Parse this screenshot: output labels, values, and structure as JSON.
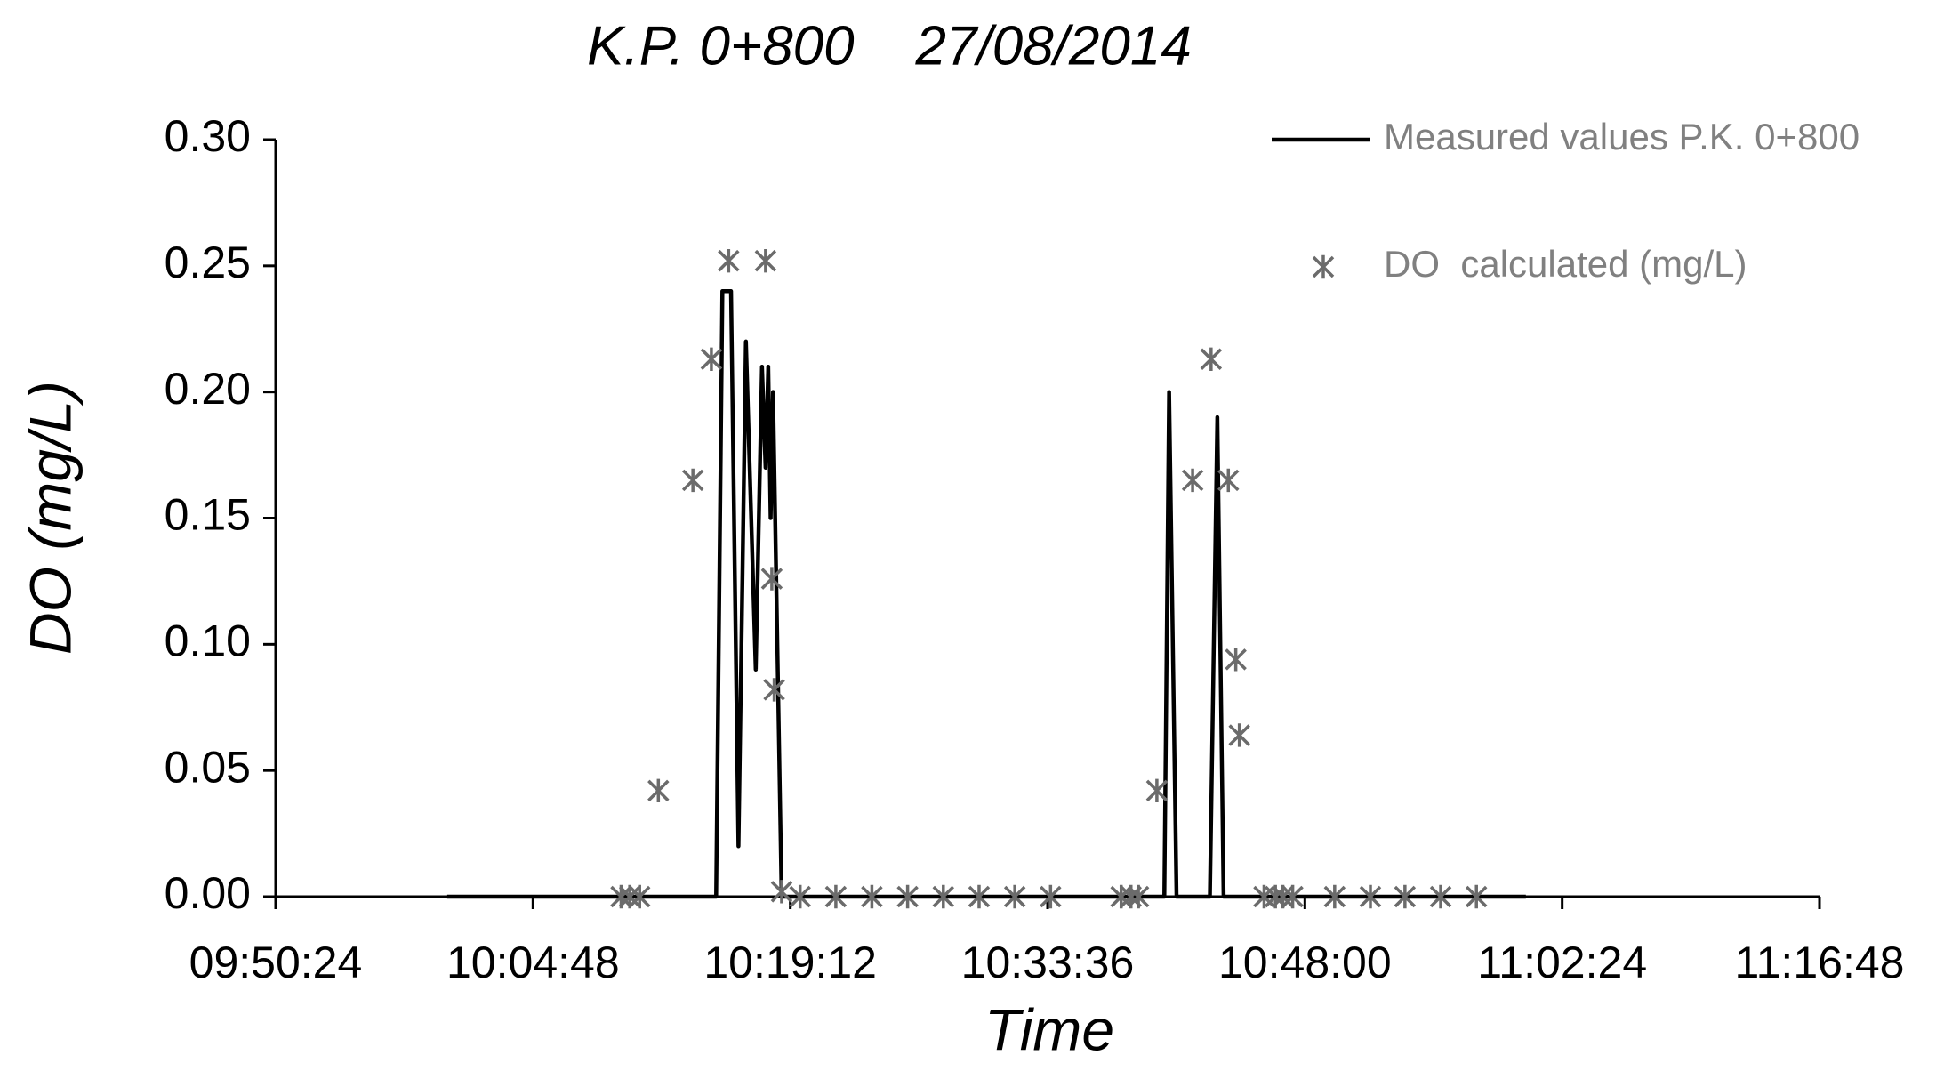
{
  "chart_data": {
    "type": "line",
    "title": "K.P. 0+800    27/08/2014",
    "x_label": "Time",
    "y_label": "DO (mg/L)",
    "xlim": [
      35424,
      40608
    ],
    "xticks": [
      {
        "value": 35424,
        "label": "09:50:24"
      },
      {
        "value": 36288,
        "label": "10:04:48"
      },
      {
        "value": 37152,
        "label": "10:19:12"
      },
      {
        "value": 38016,
        "label": "10:33:36"
      },
      {
        "value": 38880,
        "label": "10:48:00"
      },
      {
        "value": 39744,
        "label": "11:02:24"
      },
      {
        "value": 40608,
        "label": "11:16:48"
      }
    ],
    "ylim": [
      0,
      0.3
    ],
    "yticks": [
      {
        "value": 0,
        "label": "0.00"
      },
      0.05,
      {
        "value": 0.1,
        "label": "0.10"
      },
      0.15,
      {
        "value": 0.2,
        "label": "0.20"
      },
      0.25,
      {
        "value": 0.3,
        "label": "0.30"
      }
    ],
    "legend": "top-right",
    "series": [
      {
        "name": "Measured values P.K. 0+800",
        "type": "line",
        "color": "#000000",
        "x": [
          36000,
          36903,
          36924,
          36953,
          36978,
          37003,
          37036,
          37057,
          37069,
          37078,
          37086,
          37094,
          37123,
          38408,
          38424,
          38449,
          38561,
          38586,
          38607,
          39622
        ],
        "values": [
          0,
          0,
          0.24,
          0.24,
          0.02,
          0.22,
          0.09,
          0.21,
          0.17,
          0.21,
          0.15,
          0.2,
          0,
          0,
          0.2,
          0,
          0,
          0.19,
          0,
          0
        ]
      },
      {
        "name": "DO  calculated (mg/L)",
        "type": "scatter",
        "color": "#6b6b6b",
        "x": [
          36584,
          36613,
          36646,
          36709,
          36825,
          36887,
          36945,
          37069,
          37090,
          37098,
          37123,
          37185,
          37305,
          37426,
          37546,
          37666,
          37786,
          37906,
          38026,
          38263,
          38296,
          38321,
          38383,
          38503,
          38565,
          38623,
          38648,
          38660,
          38743,
          38781,
          38806,
          38839,
          38980,
          39100,
          39216,
          39336,
          39456
        ],
        "values": [
          0,
          0,
          0,
          0.042,
          0.165,
          0.213,
          0.252,
          0.252,
          0.126,
          0.082,
          0.002,
          0,
          0,
          0,
          0,
          0,
          0,
          0,
          0,
          0,
          0,
          0,
          0.042,
          0.165,
          0.213,
          0.165,
          0.094,
          0.064,
          0,
          0,
          0,
          0,
          0,
          0,
          0,
          0,
          0
        ]
      }
    ]
  }
}
